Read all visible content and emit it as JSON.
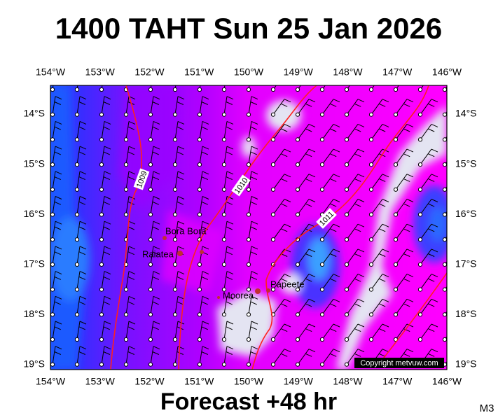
{
  "title": "1400 TAHT Sun 25 Jan 2026",
  "longitude_labels": [
    "154°W",
    "153°W",
    "152°W",
    "151°W",
    "150°W",
    "149°W",
    "148°W",
    "147°W",
    "146°W"
  ],
  "latitude_labels": [
    "14°S",
    "15°S",
    "16°S",
    "17°S",
    "18°S",
    "19°S"
  ],
  "places": [
    "Bora Bora",
    "Raiatea",
    "Moorea",
    "Papeete"
  ],
  "isobar_labels": [
    "1009",
    "1010",
    "1011"
  ],
  "copyright": "Copyright metvuw.com",
  "footer": "Forecast +48 hr",
  "model": "M3"
}
